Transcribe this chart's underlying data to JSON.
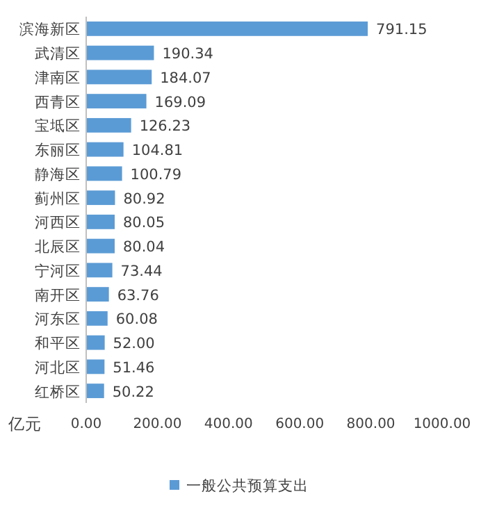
{
  "chart_data": {
    "type": "bar",
    "orientation": "horizontal",
    "categories": [
      "滨海新区",
      "武清区",
      "津南区",
      "西青区",
      "宝坻区",
      "东丽区",
      "静海区",
      "蓟州区",
      "河西区",
      "北辰区",
      "宁河区",
      "南开区",
      "河东区",
      "和平区",
      "河北区",
      "红桥区"
    ],
    "series": [
      {
        "name": "一般公共预算支出",
        "color": "#5b9bd5",
        "values": [
          791.15,
          190.34,
          184.07,
          169.09,
          126.23,
          104.81,
          100.79,
          80.92,
          80.05,
          80.04,
          73.44,
          63.76,
          60.08,
          52.0,
          51.46,
          50.22
        ]
      }
    ],
    "value_labels": [
      "791.15",
      "190.34",
      "184.07",
      "169.09",
      "126.23",
      "104.81",
      "100.79",
      "80.92",
      "80.05",
      "80.04",
      "73.44",
      "63.76",
      "60.08",
      "52.00",
      "51.46",
      "50.22"
    ],
    "xlabel": "亿元",
    "xlim": [
      0,
      1000
    ],
    "xticks": [
      {
        "value": 0,
        "label": "0.00"
      },
      {
        "value": 200,
        "label": "200.00"
      },
      {
        "value": 400,
        "label": "400.00"
      },
      {
        "value": 600,
        "label": "600.00"
      },
      {
        "value": 800,
        "label": "800.00"
      },
      {
        "value": 1000,
        "label": "1000.00"
      }
    ],
    "legend": "bottom"
  }
}
